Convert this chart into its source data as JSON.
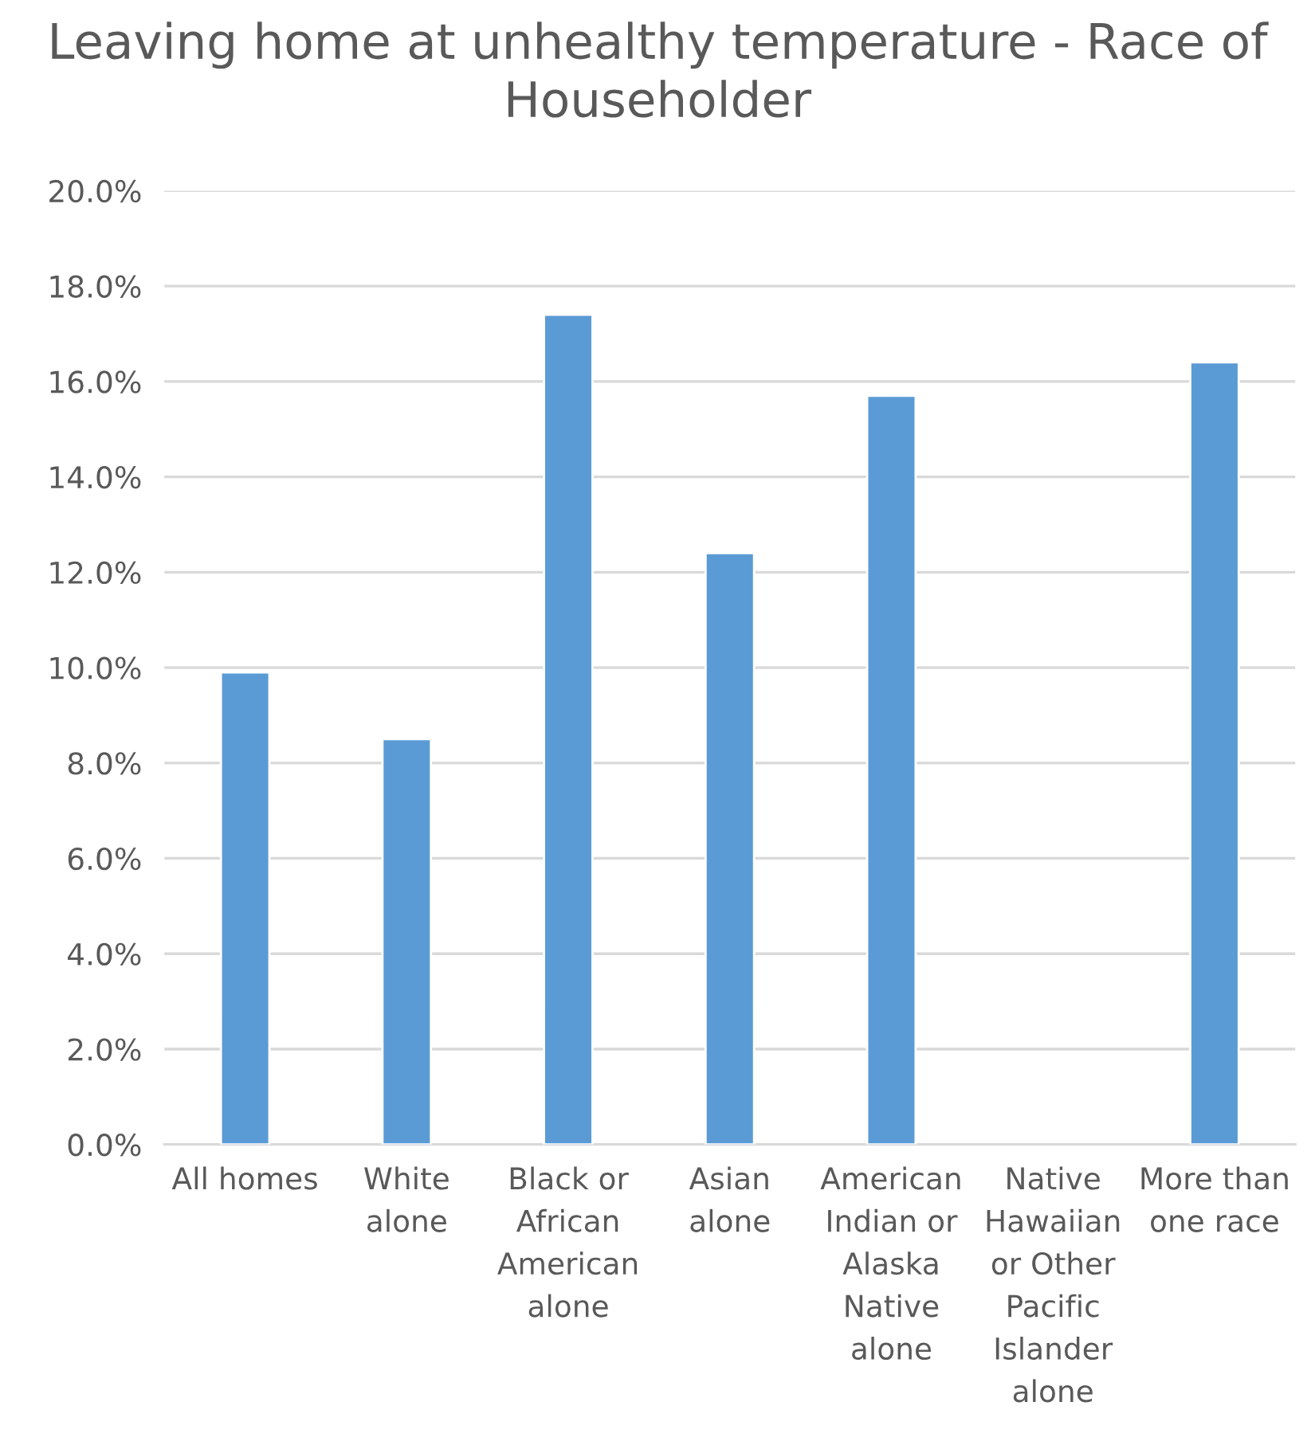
{
  "chart_data": {
    "type": "bar",
    "title": "Leaving home at unhealthy temperature - Race of Householder",
    "categories": [
      "All homes",
      "White alone",
      "Black or African American alone",
      "Asian alone",
      "American Indian or Alaska Native alone",
      "Native Hawaiian or Other Pacific Islander alone",
      "More than one race"
    ],
    "values": [
      9.9,
      8.5,
      17.4,
      12.4,
      15.7,
      null,
      16.4
    ],
    "color": "#5b9bd5",
    "ylim": [
      0,
      20
    ],
    "yticks": [
      {
        "value": 0,
        "label": "0.0%"
      },
      {
        "value": 2,
        "label": "2.0%"
      },
      {
        "value": 4,
        "label": "4.0%"
      },
      {
        "value": 6,
        "label": "6.0%"
      },
      {
        "value": 8,
        "label": "8.0%"
      },
      {
        "value": 10,
        "label": "10.0%"
      },
      {
        "value": 12,
        "label": "12.0%"
      },
      {
        "value": 14,
        "label": "14.0%"
      },
      {
        "value": 16,
        "label": "16.0%"
      },
      {
        "value": 18,
        "label": "18.0%"
      },
      {
        "value": 20,
        "label": "20.0%"
      }
    ],
    "grid": "y",
    "legend": false
  }
}
